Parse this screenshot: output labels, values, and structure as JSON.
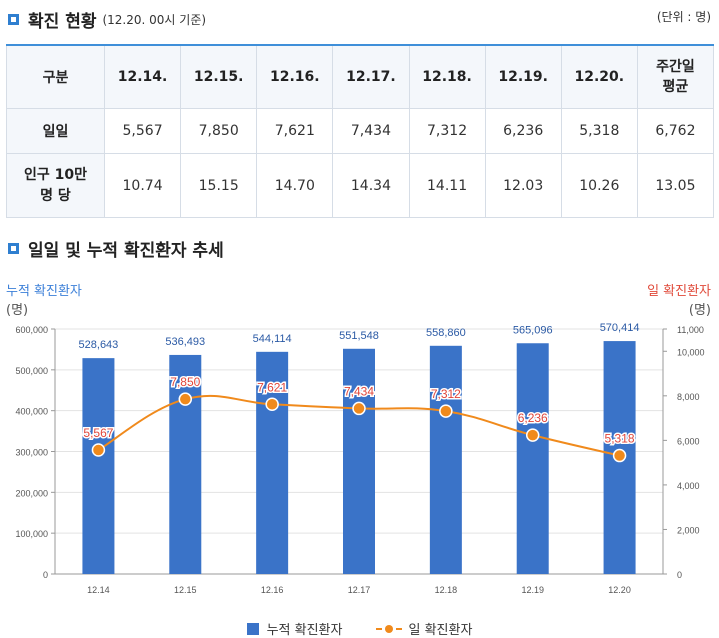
{
  "section1": {
    "title": "확진 현황",
    "subtitle": "(12.20. 00시 기준)",
    "unit": "(단위 : 명)"
  },
  "table": {
    "header_label": "구분",
    "columns": [
      "12.14.",
      "12.15.",
      "12.16.",
      "12.17.",
      "12.18.",
      "12.19.",
      "12.20.",
      "주간일\n평균"
    ],
    "rows": [
      {
        "label": "일일",
        "values": [
          "5,567",
          "7,850",
          "7,621",
          "7,434",
          "7,312",
          "6,236",
          "5,318",
          "6,762"
        ]
      },
      {
        "label": "인구 10만\n명 당",
        "values": [
          "10.74",
          "15.15",
          "14.70",
          "14.34",
          "14.11",
          "12.03",
          "10.26",
          "13.05"
        ]
      }
    ]
  },
  "section2": {
    "title": "일일 및 누적 확진환자 추세"
  },
  "colors": {
    "bar": "#3a73c8",
    "line": "#f08a1c",
    "accent": "#2f7fd0",
    "left_axis_title": "#3b7fd8",
    "right_axis_title": "#e04a3a",
    "point_label": "#e0453a"
  },
  "chart_data": {
    "type": "bar+line",
    "categories": [
      "12.14",
      "12.15",
      "12.16",
      "12.17",
      "12.18",
      "12.19",
      "12.20"
    ],
    "series": [
      {
        "name": "누적 확진환자",
        "type": "bar",
        "axis": "left",
        "values": [
          528643,
          536493,
          544114,
          551548,
          558860,
          565096,
          570414
        ],
        "labels": [
          "528,643",
          "536,493",
          "544,114",
          "551,548",
          "558,860",
          "565,096",
          "570,414"
        ]
      },
      {
        "name": "일 확진환자",
        "type": "line",
        "axis": "right",
        "values": [
          5567,
          7850,
          7621,
          7434,
          7312,
          6236,
          5318
        ],
        "labels": [
          "5,567",
          "7,850",
          "7,621",
          "7,434",
          "7,312",
          "6,236",
          "5,318"
        ]
      }
    ],
    "left_axis": {
      "title": "누적 확진환자",
      "unit": "(명)",
      "range": [
        0,
        600000
      ],
      "ticks": [
        "0",
        "100,000",
        "200,000",
        "300,000",
        "400,000",
        "500,000",
        "600,000"
      ]
    },
    "right_axis": {
      "title": "일 확진환자",
      "unit": "(명)",
      "range": [
        0,
        11000
      ],
      "ticks": [
        "0",
        "2,000",
        "4,000",
        "6,000",
        "8,000",
        "10,000",
        "11,000"
      ]
    },
    "grid": true,
    "legend": "bottom"
  }
}
